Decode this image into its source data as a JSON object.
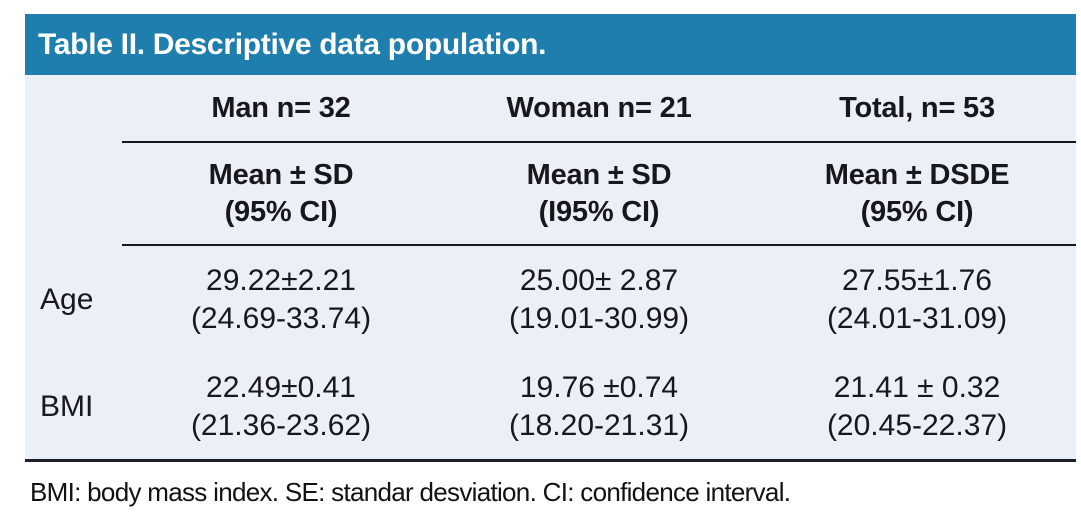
{
  "table": {
    "title": "Table II. Descriptive data population.",
    "columns": [
      {
        "label": "Man n= 32",
        "sub1": "Mean ± SD",
        "sub2": "(95% CI)"
      },
      {
        "label": "Woman n= 21",
        "sub1": "Mean ± SD",
        "sub2": "(I95% CI)"
      },
      {
        "label": "Total, n= 53",
        "sub1": "Mean ± DSDE",
        "sub2": "(95% CI)"
      }
    ],
    "rows": [
      {
        "label": "Age",
        "cells": [
          {
            "mean": "29.22±2.21",
            "ci": "(24.69-33.74)"
          },
          {
            "mean": "25.00± 2.87",
            "ci": "(19.01-30.99)"
          },
          {
            "mean": "27.55±1.76",
            "ci": "(24.01-31.09)"
          }
        ]
      },
      {
        "label": "BMI",
        "cells": [
          {
            "mean": "22.49±0.41",
            "ci": "(21.36-23.62)"
          },
          {
            "mean": "19.76 ±0.74",
            "ci": "(18.20-21.31)"
          },
          {
            "mean": "21.41 ± 0.32",
            "ci": "(20.45-22.37)"
          }
        ]
      }
    ]
  },
  "footnote": "BMI: body mass index. SE: standar desviation. CI: confidence interval.",
  "colors": {
    "header_bg": "#1E7EAE",
    "header_text": "#FFFFFF",
    "body_bg": "#EBEFF7",
    "text": "#17171C",
    "rule": "#17171C",
    "bottom_rule": "#20202B",
    "page_bg": "#FFFFFF"
  }
}
